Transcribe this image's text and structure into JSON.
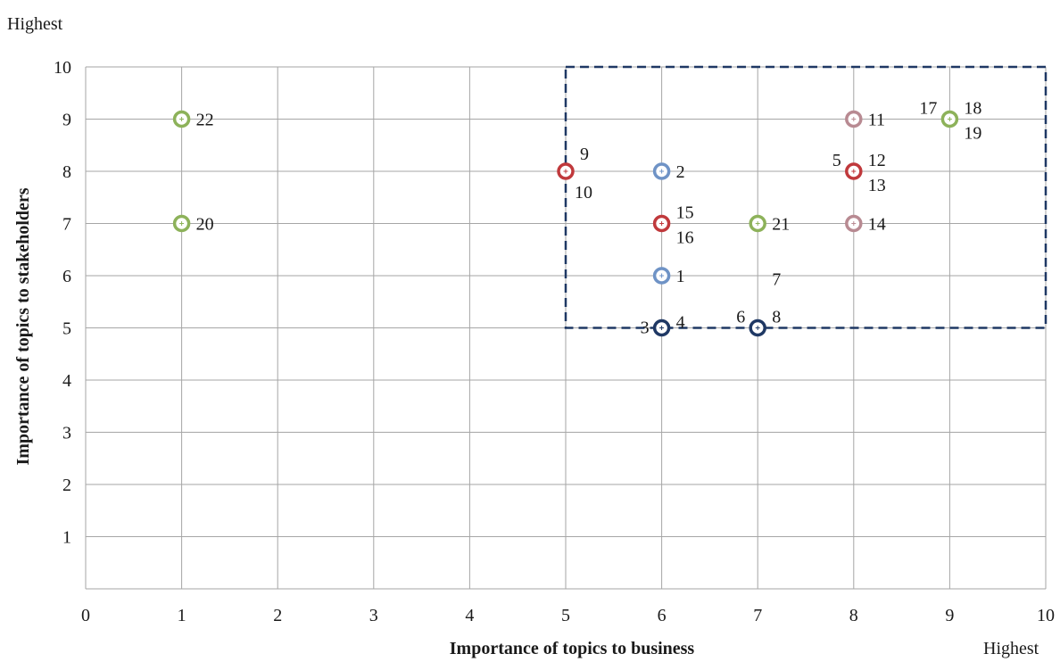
{
  "chart_data": {
    "type": "scatter",
    "xlabel": "Importance of topics to business",
    "ylabel": "Importance of topics to stakeholders",
    "x_high_label": "Highest",
    "y_high_label": "Highest",
    "xlim": [
      0,
      10
    ],
    "ylim": [
      0,
      10
    ],
    "x_ticks": [
      "0",
      "1",
      "2",
      "3",
      "4",
      "5",
      "6",
      "7",
      "8",
      "9",
      "10"
    ],
    "y_ticks": [
      "1",
      "2",
      "3",
      "4",
      "5",
      "6",
      "7",
      "8",
      "9",
      "10"
    ],
    "grid": true,
    "highlight_region": {
      "x": [
        5,
        10
      ],
      "y": [
        5,
        10
      ],
      "style": "dashed",
      "color": "#1f3864"
    },
    "series": [
      {
        "color": "#1f3864",
        "points": [
          {
            "x": 6,
            "y": 5,
            "labels": [
              "3",
              "4"
            ]
          },
          {
            "x": 7,
            "y": 5,
            "labels": [
              "6",
              "7",
              "8"
            ]
          }
        ]
      },
      {
        "color": "#6f93c6",
        "points": [
          {
            "x": 6,
            "y": 8,
            "labels": [
              "2"
            ]
          },
          {
            "x": 6,
            "y": 6,
            "labels": [
              "1"
            ]
          }
        ]
      },
      {
        "color": "#c0393c",
        "points": [
          {
            "x": 5,
            "y": 8,
            "labels": [
              "9",
              "10"
            ]
          },
          {
            "x": 6,
            "y": 7,
            "labels": [
              "15",
              "16"
            ]
          },
          {
            "x": 8,
            "y": 8,
            "labels": [
              "5",
              "12",
              "13"
            ]
          }
        ]
      },
      {
        "color": "#b88a92",
        "points": [
          {
            "x": 8,
            "y": 9,
            "labels": [
              "11"
            ]
          },
          {
            "x": 8,
            "y": 7,
            "labels": [
              "14"
            ]
          }
        ]
      },
      {
        "color": "#8db25a",
        "points": [
          {
            "x": 1,
            "y": 9,
            "labels": [
              "22"
            ]
          },
          {
            "x": 1,
            "y": 7,
            "labels": [
              "20"
            ]
          },
          {
            "x": 7,
            "y": 7,
            "labels": [
              "21"
            ]
          },
          {
            "x": 9,
            "y": 9,
            "labels": [
              "17",
              "18",
              "19"
            ]
          }
        ]
      }
    ]
  }
}
